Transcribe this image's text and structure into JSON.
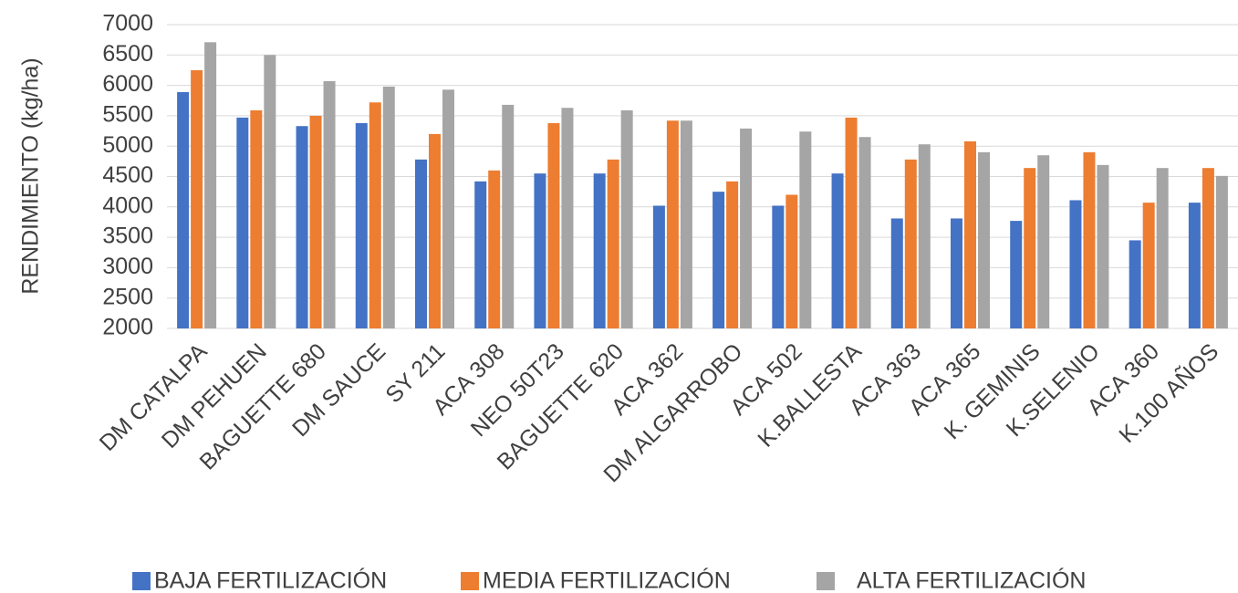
{
  "chart_data": {
    "type": "bar",
    "y_label": "RENDIMIENTO  (kg/ha)",
    "categories": [
      "DM CATALPA",
      "DM PEHUEN",
      "BAGUETTE 680",
      "DM SAUCE",
      "SY 211",
      "ACA 308",
      "NEO 50T23",
      "BAGUETTE 620",
      "ACA 362",
      "DM ALGARROBO",
      "ACA 502",
      "K.BALLESTA",
      "ACA 363",
      "ACA 365",
      "K. GEMINIS",
      "K.SELENIO",
      "ACA 360",
      "K.100 AÑOS"
    ],
    "series": [
      {
        "name": "BAJA FERTILIZACIÓN",
        "color": "#4472c4",
        "values": [
          5890,
          5470,
          5330,
          5380,
          4780,
          4420,
          4550,
          4550,
          4020,
          4250,
          4020,
          4550,
          3810,
          3810,
          3770,
          4110,
          3450,
          4070
        ]
      },
      {
        "name": "MEDIA FERTILIZACIÓN",
        "color": "#ed7d31",
        "values": [
          6250,
          5590,
          5500,
          5720,
          5200,
          4600,
          5380,
          4780,
          5420,
          4420,
          4200,
          5470,
          4780,
          5080,
          4640,
          4900,
          4070,
          4640
        ]
      },
      {
        "name": "ALTA FERTILIZACIÓN",
        "color": "#a5a5a5",
        "values": [
          6710,
          6500,
          6070,
          5980,
          5930,
          5680,
          5630,
          5590,
          5420,
          5290,
          5240,
          5150,
          5030,
          4900,
          4850,
          4690,
          4640,
          4510
        ]
      }
    ],
    "ylim": [
      2000,
      7000
    ],
    "yticks": [
      2000,
      2500,
      3000,
      3500,
      4000,
      4500,
      5000,
      5500,
      6000,
      6500,
      7000
    ],
    "grid": true
  }
}
